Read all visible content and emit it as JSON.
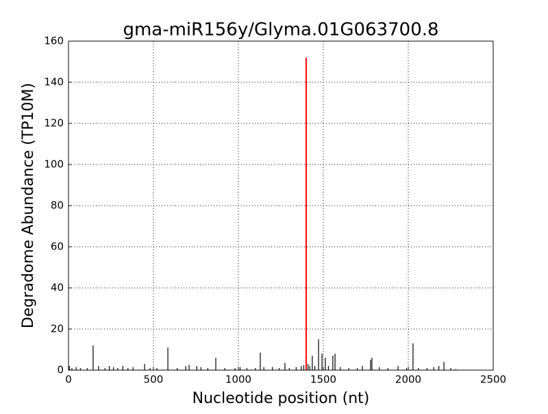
{
  "chart_data": {
    "type": "stem",
    "title": "gma-miR156y/Glyma.01G063700.8",
    "x_label": "Nucleotide position (nt)",
    "y_label": "Degradome Abundance (TP10M)",
    "xlim": [
      0,
      2500
    ],
    "xticks": [
      0,
      500,
      1000,
      1500,
      2000,
      2500
    ],
    "ylim": [
      0,
      160
    ],
    "yticks": [
      0,
      20,
      40,
      60,
      80,
      100,
      120,
      140,
      160
    ],
    "grid": true,
    "series": [
      {
        "color": "#000000",
        "x": [
          5,
          20,
          45,
          70,
          110,
          145,
          177,
          215,
          240,
          265,
          290,
          320,
          350,
          380,
          448,
          480,
          520,
          585,
          640,
          690,
          710,
          755,
          780,
          820,
          867,
          920,
          980,
          1010,
          1050,
          1100,
          1129,
          1150,
          1200,
          1240,
          1274,
          1300,
          1340,
          1370,
          1385,
          1410,
          1420,
          1435,
          1450,
          1472,
          1492,
          1512,
          1530,
          1556,
          1569,
          1600,
          1650,
          1700,
          1730,
          1778,
          1786,
          1830,
          1880,
          1940,
          1990,
          2028,
          2060,
          2110,
          2150,
          2180,
          2210,
          2250,
          2280
        ],
        "values": [
          2,
          1,
          1.5,
          1,
          1,
          12,
          2,
          1,
          2,
          1.5,
          1,
          2,
          1,
          1.5,
          3,
          1,
          1,
          11,
          1,
          2,
          2.5,
          2,
          1.5,
          1,
          6,
          1,
          1,
          1.5,
          1,
          1,
          8.5,
          1.5,
          1.5,
          1,
          3.5,
          1,
          1.5,
          2,
          2.5,
          3,
          2,
          7,
          2,
          15,
          8,
          6,
          2,
          7,
          8,
          1.5,
          1,
          1,
          2,
          5,
          6,
          1.5,
          1,
          2,
          1,
          13,
          1,
          1,
          1.5,
          2,
          4,
          1,
          0.5
        ]
      },
      {
        "color": "#ff0000",
        "x": [
          1399
        ],
        "values": [
          152
        ]
      }
    ]
  }
}
